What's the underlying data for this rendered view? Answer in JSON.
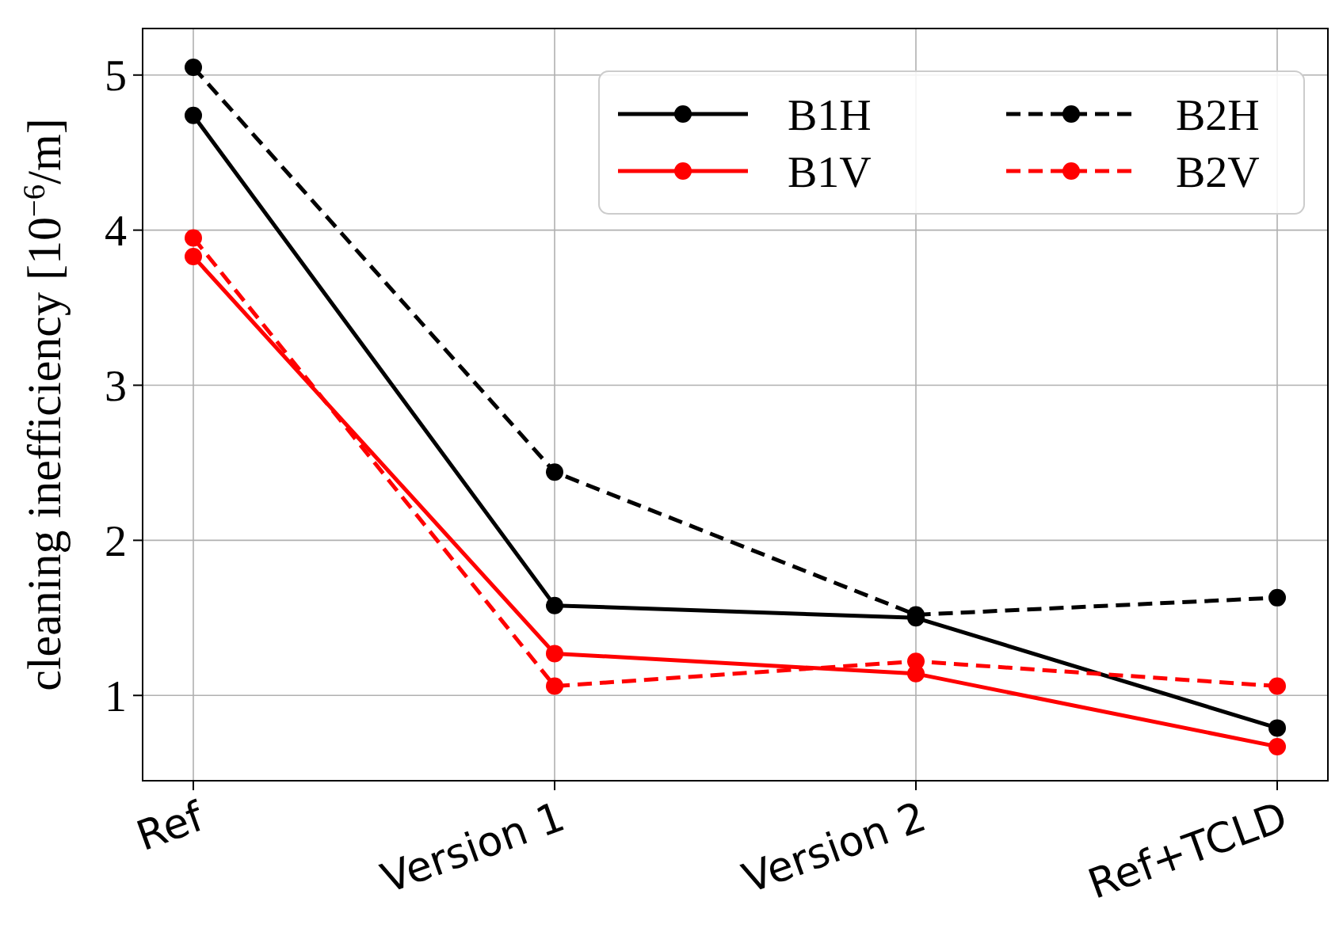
{
  "chart_data": {
    "type": "line",
    "ylabel": "cleaning inefficiency [10$^{−6}$/m]",
    "categories": [
      "Ref",
      "Version 1",
      "Version 2",
      "Ref+TCLD"
    ],
    "series": [
      {
        "name": "B1H",
        "color": "#000000",
        "line_style": "solid",
        "values": [
          4.74,
          1.58,
          1.5,
          0.79
        ]
      },
      {
        "name": "B1V",
        "color": "#ff0000",
        "line_style": "solid",
        "values": [
          3.83,
          1.27,
          1.14,
          0.67
        ]
      },
      {
        "name": "B2H",
        "color": "#000000",
        "line_style": "dashed",
        "values": [
          5.05,
          2.44,
          1.52,
          1.63
        ]
      },
      {
        "name": "B2V",
        "color": "#ff0000",
        "line_style": "dashed",
        "values": [
          3.95,
          1.06,
          1.22,
          1.06
        ]
      }
    ],
    "ylim": [
      0.45,
      5.3
    ],
    "yticks": [
      1,
      2,
      3,
      4,
      5
    ],
    "grid": true,
    "legend": "top right",
    "marker": "circle"
  }
}
